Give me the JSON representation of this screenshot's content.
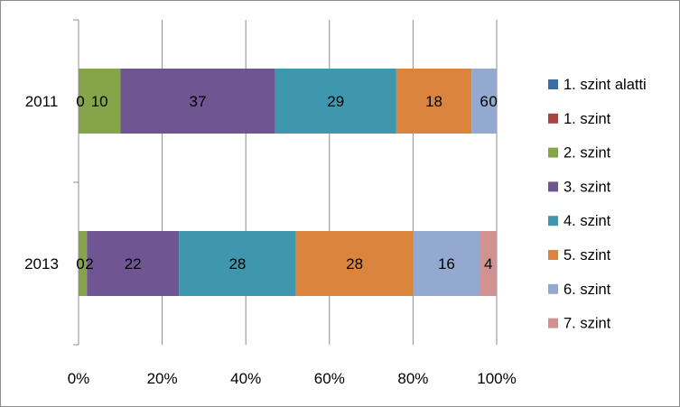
{
  "chart_data": {
    "type": "bar",
    "orientation": "horizontal",
    "stacking": "percent",
    "categories": [
      "2011",
      "2013"
    ],
    "xlim": [
      0,
      100
    ],
    "xticks": [
      "0%",
      "20%",
      "40%",
      "60%",
      "80%",
      "100%"
    ],
    "grid": true,
    "legend_position": "right",
    "series": [
      {
        "name": "1. szint alatti",
        "color": "#3c6ea6",
        "values": [
          0,
          0
        ],
        "labels": [
          "0",
          "0"
        ]
      },
      {
        "name": "1. szint",
        "color": "#a84442",
        "values": [
          0,
          0
        ],
        "labels": [
          "",
          ""
        ]
      },
      {
        "name": "2. szint",
        "color": "#86a44a",
        "values": [
          10,
          2
        ],
        "labels": [
          "10",
          "2"
        ]
      },
      {
        "name": "3. szint",
        "color": "#6f5692",
        "values": [
          37,
          22
        ],
        "labels": [
          "37",
          "22"
        ]
      },
      {
        "name": "4. szint",
        "color": "#3f97ad",
        "values": [
          29,
          28
        ],
        "labels": [
          "29",
          "28"
        ]
      },
      {
        "name": "5. szint",
        "color": "#db843d",
        "values": [
          18,
          28
        ],
        "labels": [
          "18",
          "28"
        ]
      },
      {
        "name": "6. szint",
        "color": "#93a9d0",
        "values": [
          6,
          16
        ],
        "labels": [
          "6",
          "16"
        ]
      },
      {
        "name": "7. szint",
        "color": "#d19392",
        "values": [
          0,
          4
        ],
        "labels": [
          "0",
          "4"
        ]
      }
    ]
  }
}
